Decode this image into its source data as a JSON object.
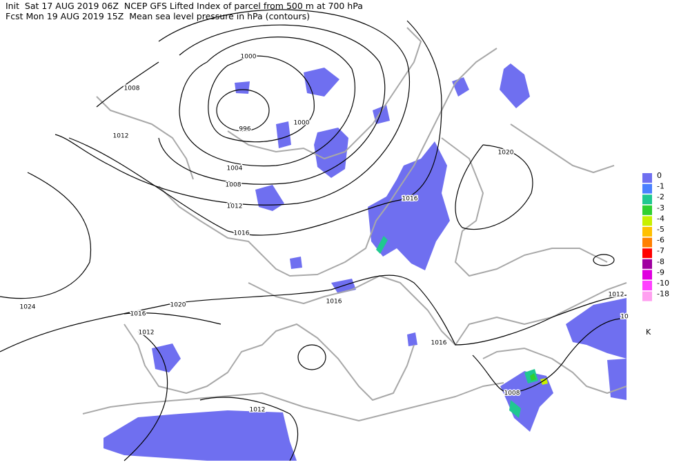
{
  "header": {
    "line1": "Init  Sat 17 AUG 2019 06Z  NCEP GFS Lifted Index of parcel from 500 m at 700 hPa",
    "line2": "Fcst Mon 19 AUG 2019 15Z  Mean sea level pressure in hPa (contours)"
  },
  "contour_labels": [
    1000,
    1008,
    1012,
    996,
    1000,
    1004,
    1008,
    1012,
    1016,
    1016,
    1020,
    1024,
    1020,
    1016,
    1012,
    1016,
    1016,
    1012,
    "10",
    1012,
    1008
  ],
  "legend": {
    "items": [
      {
        "label": 0,
        "color": "#6f6ff0"
      },
      {
        "label": -1,
        "color": "#4a80ff"
      },
      {
        "label": -2,
        "color": "#20c890"
      },
      {
        "label": -3,
        "color": "#30d030"
      },
      {
        "label": -4,
        "color": "#c8f000"
      },
      {
        "label": -5,
        "color": "#ffc000"
      },
      {
        "label": -6,
        "color": "#ff8000"
      },
      {
        "label": -7,
        "color": "#ff0000"
      },
      {
        "label": -8,
        "color": "#a000a0"
      },
      {
        "label": -9,
        "color": "#e000e0"
      },
      {
        "label": -10,
        "color": "#ff40ff"
      },
      {
        "label": -18,
        "color": "#ffa0f0"
      }
    ],
    "unit": "K"
  }
}
